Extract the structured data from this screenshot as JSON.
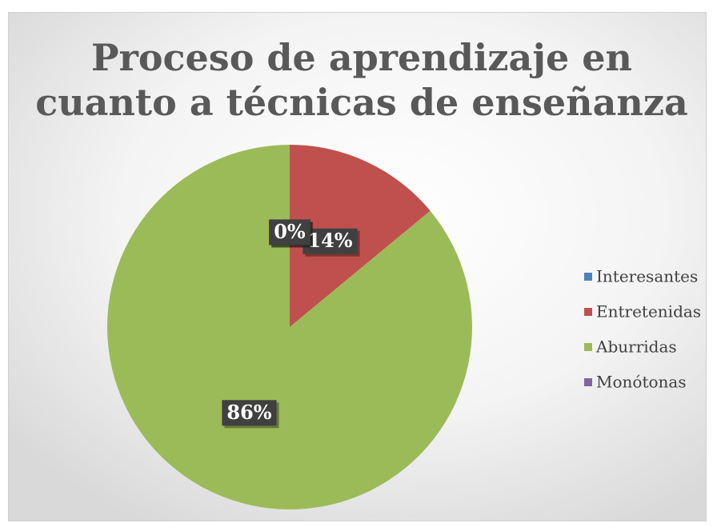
{
  "chart_data": {
    "type": "pie",
    "title": "Proceso de aprendizaje en cuanto a técnicas de enseñanza",
    "title_lines": [
      "Proceso de aprendizaje en",
      "cuanto a técnicas de enseñanza"
    ],
    "categories": [
      "Interesantes",
      "Entretenidas",
      "Aburridas",
      "Monótonas"
    ],
    "values": [
      0,
      14,
      86,
      0
    ],
    "value_labels": [
      "0%",
      "14%",
      "86%",
      "0%"
    ],
    "colors": [
      "#4f81bd",
      "#c0504d",
      "#9bbb59",
      "#8064a2"
    ],
    "legend": "right"
  }
}
